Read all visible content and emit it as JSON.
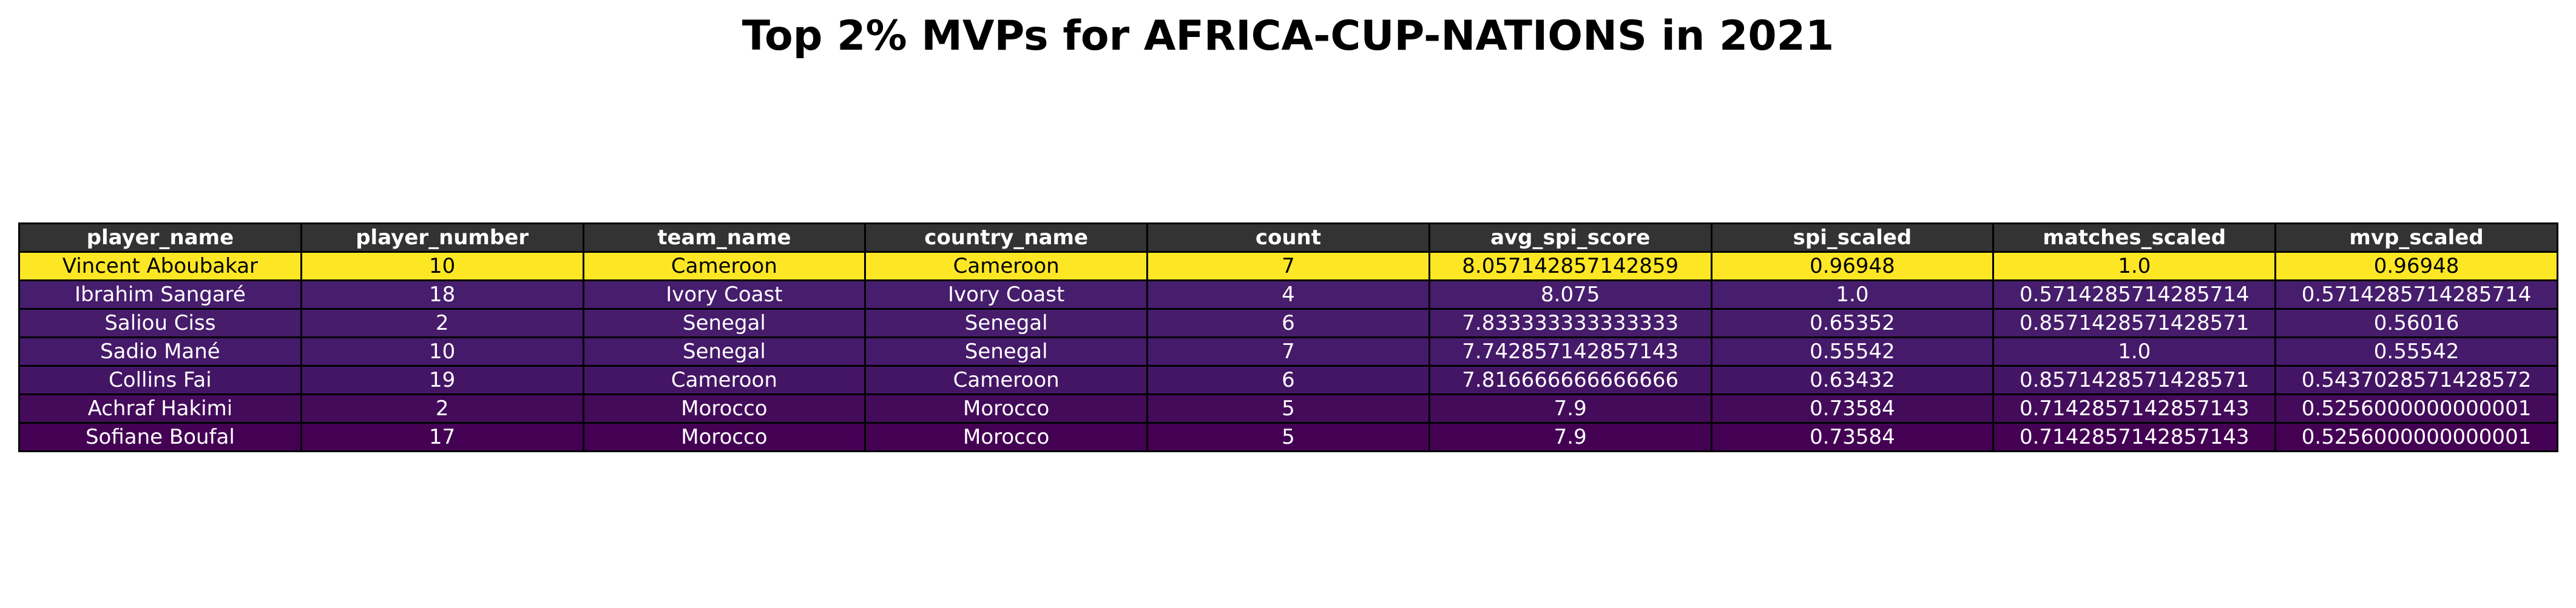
{
  "chart_data": {
    "type": "table",
    "title": "Top 2% MVPs for AFRICA-CUP-NATIONS in 2021",
    "columns": [
      "player_name",
      "player_number",
      "team_name",
      "country_name",
      "count",
      "avg_spi_score",
      "spi_scaled",
      "matches_scaled",
      "mvp_scaled"
    ],
    "rows": [
      {
        "cells": [
          "Vincent Aboubakar",
          "10",
          "Cameroon",
          "Cameroon",
          "7",
          "8.057142857142859",
          "0.96948",
          "1.0",
          "0.96948"
        ],
        "bg": "#fde725",
        "fg": "#000000"
      },
      {
        "cells": [
          "Ibrahim Sangaré",
          "18",
          "Ivory Coast",
          "Ivory Coast",
          "4",
          "8.075",
          "1.0",
          "0.5714285714285714",
          "0.5714285714285714"
        ],
        "bg": "#471e6e",
        "fg": "#ffffff"
      },
      {
        "cells": [
          "Saliou Ciss",
          "2",
          "Senegal",
          "Senegal",
          "6",
          "7.833333333333333",
          "0.65352",
          "0.8571428571428571",
          "0.56016"
        ],
        "bg": "#461c6b",
        "fg": "#ffffff"
      },
      {
        "cells": [
          "Sadio Mané",
          "10",
          "Senegal",
          "Senegal",
          "7",
          "7.742857142857143",
          "0.55542",
          "1.0",
          "0.55542"
        ],
        "bg": "#461a6a",
        "fg": "#ffffff"
      },
      {
        "cells": [
          "Collins Fai",
          "19",
          "Cameroon",
          "Cameroon",
          "6",
          "7.816666666666666",
          "0.63432",
          "0.8571428571428571",
          "0.5437028571428572"
        ],
        "bg": "#451565",
        "fg": "#ffffff"
      },
      {
        "cells": [
          "Achraf Hakimi",
          "2",
          "Morocco",
          "Morocco",
          "5",
          "7.9",
          "0.73584",
          "0.7142857142857143",
          "0.5256000000000001"
        ],
        "bg": "#440b5a",
        "fg": "#ffffff"
      },
      {
        "cells": [
          "Sofiane Boufal",
          "17",
          "Morocco",
          "Morocco",
          "5",
          "7.9",
          "0.73584",
          "0.7142857142857143",
          "0.5256000000000001"
        ],
        "bg": "#440154",
        "fg": "#ffffff"
      }
    ],
    "header_bg": "#333333",
    "header_fg": "#ffffff"
  }
}
